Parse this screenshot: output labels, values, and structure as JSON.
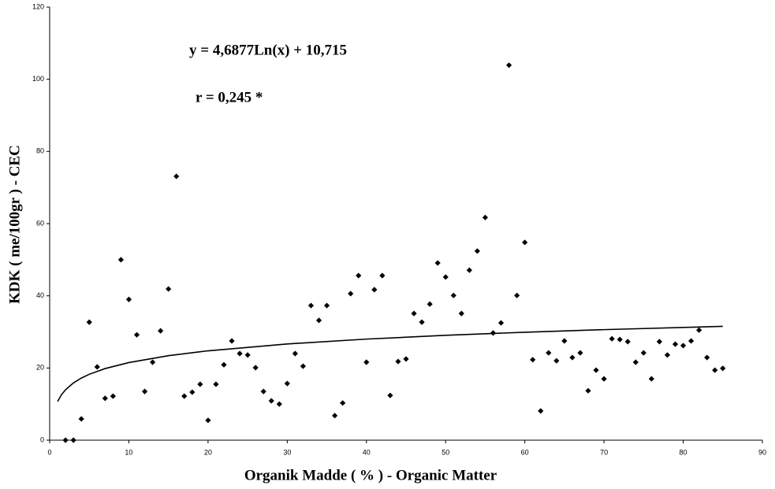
{
  "chart_data": {
    "type": "scatter",
    "annotations": [
      "y = 4,6877Ln(x) + 10,715",
      "r = 0,245 *"
    ],
    "xlabel": "Organik Madde  ( % ) - Organic Matter",
    "ylabel": "KDK  ( me/100gr ) - CEC",
    "xlim": [
      0,
      90
    ],
    "xticks": [
      0,
      10,
      20,
      30,
      40,
      50,
      60,
      70,
      80,
      90
    ],
    "ylim": [
      0,
      120
    ],
    "yticks": [
      0,
      20,
      40,
      60,
      80,
      100,
      120
    ],
    "color": "#000000",
    "x": [
      2,
      3,
      4,
      5,
      6,
      7,
      8,
      9,
      10,
      11,
      12,
      13,
      14,
      15,
      16,
      17,
      18,
      19,
      20,
      21,
      22,
      23,
      24,
      25,
      26,
      27,
      28,
      29,
      30,
      31,
      32,
      33,
      34,
      35,
      36,
      37,
      38,
      39,
      40,
      41,
      42,
      43,
      44,
      45,
      46,
      47,
      48,
      49,
      50,
      51,
      52,
      53,
      54,
      55,
      56,
      57,
      58,
      59,
      60,
      61,
      62,
      63,
      64,
      65,
      66,
      67,
      68,
      69,
      70,
      71,
      72,
      73,
      74,
      75,
      76,
      77,
      78,
      79,
      80,
      81,
      82,
      83,
      84,
      85
    ],
    "values": [
      0,
      0,
      5.9,
      32.7,
      20.3,
      11.6,
      12.2,
      50,
      39,
      29.2,
      13.5,
      21.6,
      30.3,
      41.9,
      73.1,
      12.2,
      13.3,
      15.5,
      5.5,
      15.5,
      20.9,
      27.5,
      24,
      23.6,
      20.1,
      13.5,
      10.9,
      10,
      15.7,
      24,
      20.5,
      37.3,
      33.2,
      37.3,
      6.8,
      10.3,
      40.6,
      45.6,
      21.6,
      41.7,
      45.6,
      12.4,
      21.8,
      22.5,
      35.1,
      32.7,
      37.7,
      49.1,
      45.2,
      40.1,
      35.1,
      47.1,
      52.4,
      61.7,
      29.7,
      32.5,
      103.9,
      40.1,
      54.8,
      22.3,
      8.1,
      24.2,
      22,
      27.5,
      22.9,
      24.2,
      13.7,
      19.4,
      17,
      28.1,
      27.9,
      27.3,
      21.6,
      24.2,
      17,
      27.3,
      23.6,
      26.6,
      26.2,
      27.5,
      30.5,
      22.9,
      19.4,
      19.9
    ],
    "trendline": {
      "color": "#000000",
      "x": [
        1,
        1.5,
        2,
        3,
        4,
        5,
        7,
        10,
        15,
        20,
        30,
        40,
        50,
        60,
        70,
        85
      ],
      "values": [
        10.715,
        12.62,
        13.96,
        15.87,
        17.21,
        18.26,
        19.84,
        21.51,
        23.41,
        24.76,
        26.66,
        28.01,
        29.05,
        29.91,
        30.63,
        31.54
      ]
    }
  }
}
